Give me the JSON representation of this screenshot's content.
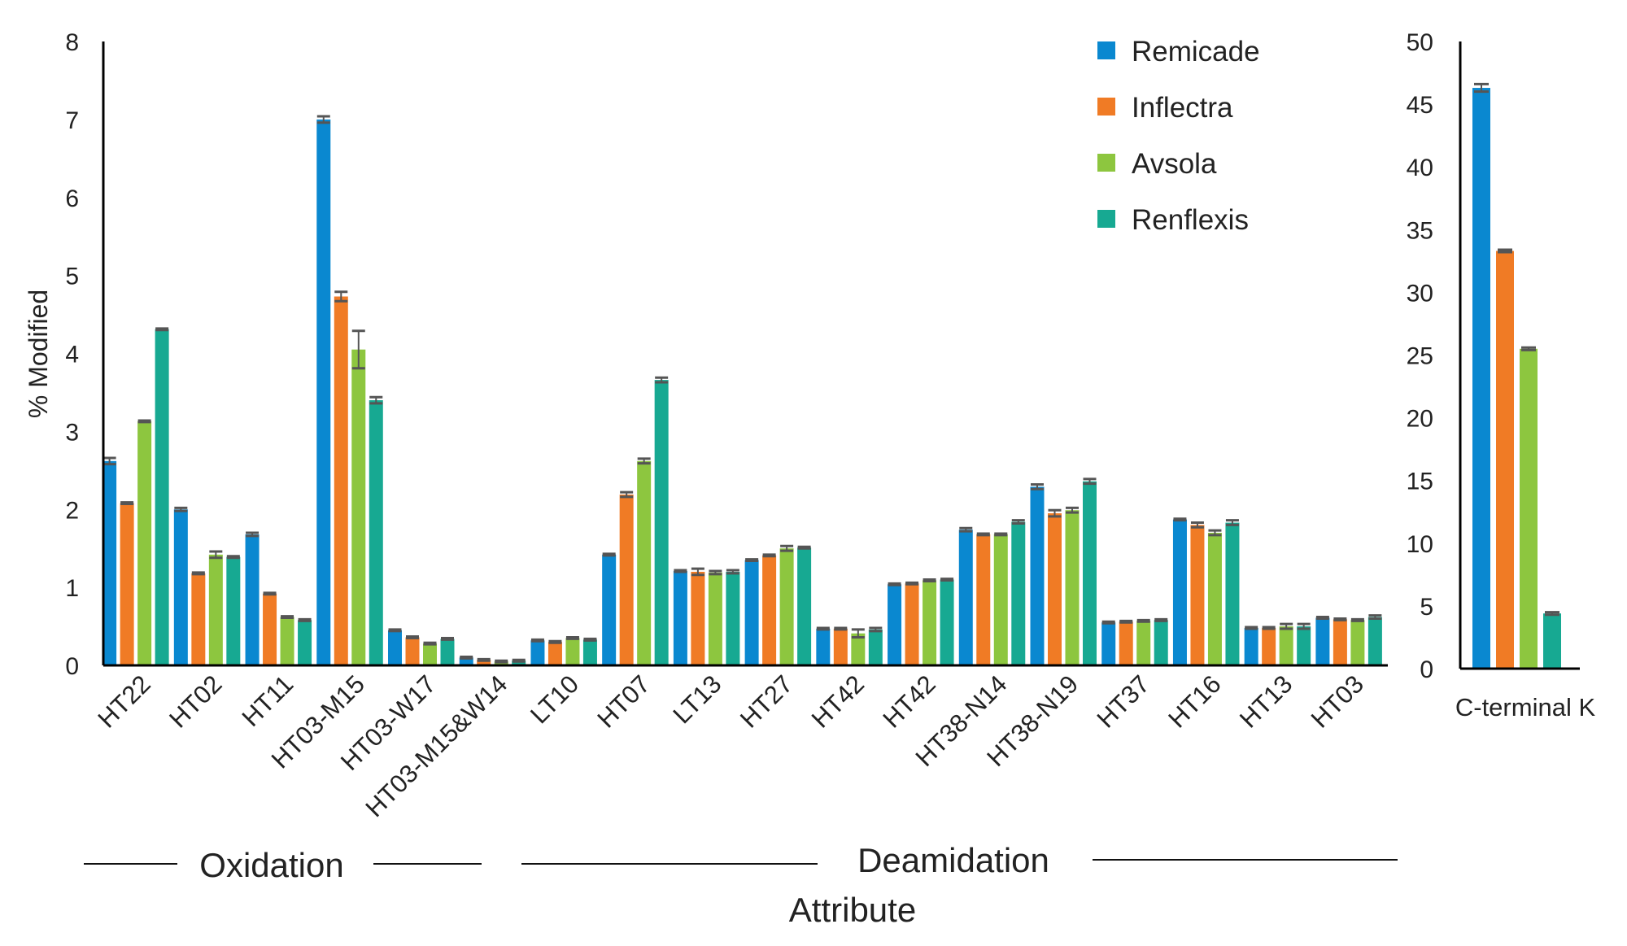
{
  "chart_data": [
    {
      "type": "bar",
      "title": "",
      "ylabel": "% Modified",
      "xlabel": "Attribute",
      "ylim": [
        0,
        8
      ],
      "yticks": [
        0,
        1,
        2,
        3,
        4,
        5,
        6,
        7,
        8
      ],
      "categories": [
        "HT22",
        "HT02",
        "HT11",
        "HT03-M15",
        "HT03-W17",
        "HT03-M15&W14",
        "LT10",
        "HT07",
        "LT13",
        "HT27",
        "HT42",
        "HT42",
        "HT38-N14",
        "HT38-N19",
        "HT37",
        "HT16",
        "HT13",
        "HT03"
      ],
      "groups": [
        {
          "label": "Oxidation",
          "categories": [
            "HT22",
            "HT02",
            "HT11",
            "HT03-M15",
            "HT03-W17",
            "HT03-M15&W14"
          ]
        },
        {
          "label": "Deamidation",
          "categories": [
            "LT10",
            "HT07",
            "LT13",
            "HT27",
            "HT42",
            "HT42",
            "HT38-N14",
            "HT38-N19",
            "HT37",
            "HT16",
            "HT13",
            "HT03"
          ]
        }
      ],
      "series": [
        {
          "name": "Remicade",
          "color": "#0a88d0",
          "values": [
            2.62,
            2.0,
            1.68,
            7.0,
            0.45,
            0.1,
            0.32,
            1.42,
            1.21,
            1.35,
            0.47,
            1.04,
            1.74,
            2.29,
            0.55,
            1.87,
            0.48,
            0.61
          ],
          "errors": [
            0.04,
            0.02,
            0.02,
            0.04,
            0.01,
            0.01,
            0.01,
            0.01,
            0.01,
            0.01,
            0.01,
            0.01,
            0.02,
            0.03,
            0.01,
            0.01,
            0.01,
            0.01
          ]
        },
        {
          "name": "Inflectra",
          "color": "#f07b25",
          "values": [
            2.08,
            1.18,
            0.92,
            4.73,
            0.36,
            0.07,
            0.3,
            2.19,
            1.2,
            1.41,
            0.47,
            1.05,
            1.68,
            1.95,
            0.56,
            1.8,
            0.48,
            0.59
          ],
          "errors": [
            0.01,
            0.01,
            0.01,
            0.06,
            0.01,
            0.01,
            0.01,
            0.03,
            0.04,
            0.01,
            0.01,
            0.01,
            0.01,
            0.04,
            0.01,
            0.03,
            0.01,
            0.01
          ]
        },
        {
          "name": "Avsola",
          "color": "#8dc63f",
          "values": [
            3.13,
            1.42,
            0.62,
            4.05,
            0.28,
            0.05,
            0.35,
            2.62,
            1.19,
            1.5,
            0.41,
            1.09,
            1.68,
            1.99,
            0.57,
            1.7,
            0.5,
            0.58
          ],
          "errors": [
            0.01,
            0.04,
            0.01,
            0.24,
            0.01,
            0.01,
            0.01,
            0.03,
            0.02,
            0.03,
            0.05,
            0.01,
            0.01,
            0.03,
            0.01,
            0.03,
            0.03,
            0.01
          ]
        },
        {
          "name": "Renflexis",
          "color": "#17a992",
          "values": [
            4.31,
            1.39,
            0.58,
            3.4,
            0.34,
            0.06,
            0.33,
            3.66,
            1.2,
            1.51,
            0.46,
            1.1,
            1.84,
            2.36,
            0.58,
            1.83,
            0.5,
            0.62
          ],
          "errors": [
            0.01,
            0.01,
            0.01,
            0.04,
            0.01,
            0.01,
            0.01,
            0.03,
            0.02,
            0.01,
            0.02,
            0.01,
            0.02,
            0.03,
            0.01,
            0.03,
            0.03,
            0.02
          ]
        }
      ],
      "legend": {
        "position": "top-right",
        "entries": [
          "Remicade",
          "Inflectra",
          "Avsola",
          "Renflexis"
        ]
      },
      "grid": false
    },
    {
      "type": "bar",
      "title": "",
      "ylim": [
        0,
        50
      ],
      "yticks": [
        0,
        5,
        10,
        15,
        20,
        25,
        30,
        35,
        40,
        45,
        50
      ],
      "categories": [
        "C-terminal K"
      ],
      "series": [
        {
          "name": "Remicade",
          "color": "#0a88d0",
          "values": [
            46.3
          ],
          "errors": [
            0.3
          ]
        },
        {
          "name": "Inflectra",
          "color": "#f07b25",
          "values": [
            33.3
          ],
          "errors": [
            0.1
          ]
        },
        {
          "name": "Avsola",
          "color": "#8dc63f",
          "values": [
            25.5
          ],
          "errors": [
            0.1
          ]
        },
        {
          "name": "Renflexis",
          "color": "#17a992",
          "values": [
            4.4
          ],
          "errors": [
            0.1
          ]
        }
      ],
      "grid": false
    }
  ]
}
